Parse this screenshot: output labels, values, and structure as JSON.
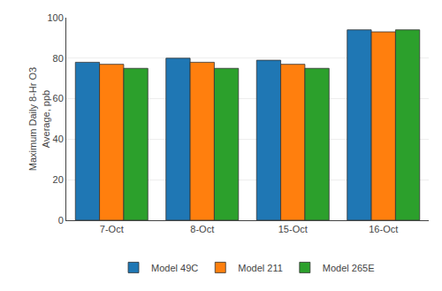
{
  "chart_data": {
    "type": "bar",
    "ylabel": "Maximum Daily 8-Hr O3\nAverage, ppb",
    "categories": [
      "7-Oct",
      "8-Oct",
      "15-Oct",
      "16-Oct"
    ],
    "series": [
      {
        "name": "Model 49C",
        "values": [
          78,
          80,
          79,
          94
        ]
      },
      {
        "name": "Model 211",
        "values": [
          77,
          78,
          77,
          93
        ]
      },
      {
        "name": "Model 265E",
        "values": [
          75,
          75,
          75,
          94
        ]
      }
    ],
    "ylim": [
      0,
      100
    ],
    "yticks": [
      0,
      20,
      40,
      60,
      80,
      100
    ],
    "grid": true,
    "legend": "bottom"
  }
}
